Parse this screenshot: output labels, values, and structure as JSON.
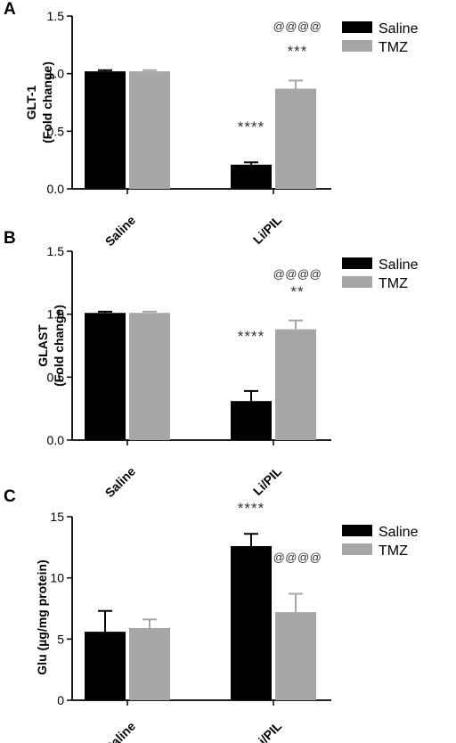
{
  "colors": {
    "saline": "#000000",
    "tmz": "#a6a6a6",
    "axis": "#000000",
    "annotation": "#333333"
  },
  "chart_data": [
    {
      "panel_letter": "A",
      "type": "bar",
      "categories": [
        "Saline",
        "Li/PIL"
      ],
      "series": [
        {
          "name": "Saline",
          "values": [
            1.02,
            0.21
          ],
          "errors": [
            0.01,
            0.02
          ]
        },
        {
          "name": "TMZ",
          "values": [
            1.02,
            0.87
          ],
          "errors": [
            0.01,
            0.07
          ]
        }
      ],
      "ylabel": [
        "GLT-1",
        "(Fold change)"
      ],
      "ylim": [
        0,
        1.5
      ],
      "yticks": [
        "0.0",
        "0.5",
        "1.0",
        "1.5"
      ],
      "ytick_values": [
        0,
        0.5,
        1.0,
        1.5
      ],
      "annotations": [
        {
          "text": "****",
          "category": 1,
          "series": 0
        },
        {
          "text": "***",
          "category": 1,
          "series": 1
        },
        {
          "text": "@@@@",
          "category": 1,
          "series": 1
        }
      ],
      "legend": [
        "Saline",
        "TMZ"
      ],
      "legend_position": "top-right"
    },
    {
      "panel_letter": "B",
      "type": "bar",
      "categories": [
        "Saline",
        "Li/PIL"
      ],
      "series": [
        {
          "name": "Saline",
          "values": [
            1.01,
            0.31
          ],
          "errors": [
            0.01,
            0.08
          ]
        },
        {
          "name": "TMZ",
          "values": [
            1.01,
            0.88
          ],
          "errors": [
            0.01,
            0.07
          ]
        }
      ],
      "ylabel": [
        "GLAST",
        "(Fold change)"
      ],
      "ylim": [
        0,
        1.5
      ],
      "yticks": [
        "0.0",
        "0.5",
        "1.0",
        "1.5"
      ],
      "ytick_values": [
        0,
        0.5,
        1.0,
        1.5
      ],
      "annotations": [
        {
          "text": "****",
          "category": 1,
          "series": 0
        },
        {
          "text": "**",
          "category": 1,
          "series": 1
        },
        {
          "text": "@@@@",
          "category": 1,
          "series": 1
        }
      ],
      "legend": [
        "Saline",
        "TMZ"
      ],
      "legend_position": "top-right"
    },
    {
      "panel_letter": "C",
      "type": "bar",
      "categories": [
        "Saline",
        "Li/PIL"
      ],
      "series": [
        {
          "name": "Saline",
          "values": [
            5.6,
            12.6
          ],
          "errors": [
            1.7,
            1.0
          ]
        },
        {
          "name": "TMZ",
          "values": [
            5.9,
            7.2
          ],
          "errors": [
            0.7,
            1.5
          ]
        }
      ],
      "ylabel": [
        "Glu (µg/mg protein)"
      ],
      "ylim": [
        0,
        15
      ],
      "yticks": [
        "0",
        "5",
        "10",
        "15"
      ],
      "ytick_values": [
        0,
        5,
        10,
        15
      ],
      "annotations": [
        {
          "text": "****",
          "category": 1,
          "series": 0
        },
        {
          "text": "@@@@",
          "category": 1,
          "series": 1
        }
      ],
      "legend": [
        "Saline",
        "TMZ"
      ],
      "legend_position": "top-right"
    }
  ]
}
